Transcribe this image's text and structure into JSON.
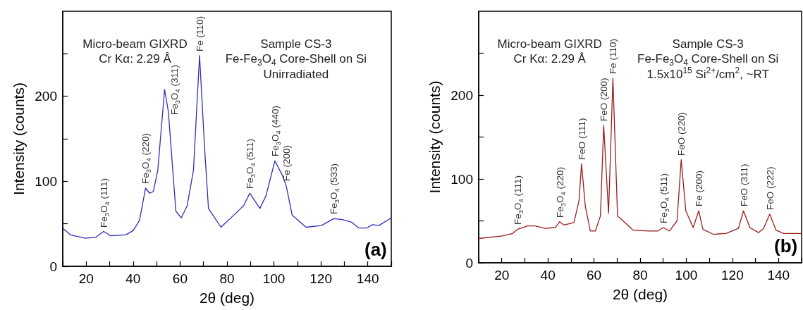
{
  "chart_data": [
    {
      "type": "line",
      "xlabel": "2θ (deg)",
      "ylabel": "Intensity (counts)",
      "x": [
        10,
        13.2,
        19.7,
        24,
        27.4,
        30.4,
        36.8,
        40,
        42.7,
        45.3,
        47,
        48.6,
        50.5,
        53.4,
        55,
        58.2,
        60.5,
        63,
        65.7,
        68.3,
        70.5,
        72.1,
        77.4,
        82.8,
        87,
        89.7,
        94,
        96.6,
        100.4,
        103.6,
        105.2,
        107.8,
        113.7,
        120.2,
        125.5,
        129.2,
        133,
        136.2,
        139.4,
        142,
        144.7,
        150
      ],
      "series": [
        {
          "color": "#2e2eb8",
          "values": [
            45,
            37,
            33,
            34,
            41,
            36,
            37,
            42,
            54,
            92,
            86,
            88,
            113,
            208,
            182,
            65,
            57,
            71,
            113,
            248,
            137,
            68,
            46,
            60,
            71,
            86,
            68,
            83,
            124,
            107,
            95,
            60,
            46,
            48,
            56,
            55,
            52,
            45,
            45,
            49,
            48,
            57
          ]
        }
      ],
      "xlim": [
        10,
        150
      ],
      "xticks": [
        {
          "value": 10,
          "label": null
        },
        20,
        {
          "value": 30,
          "label": null
        },
        40,
        {
          "value": 50,
          "label": null
        },
        60,
        {
          "value": 70,
          "label": null
        },
        80,
        {
          "value": 90,
          "label": null
        },
        100,
        {
          "value": 110,
          "label": null
        },
        120,
        {
          "value": 130,
          "label": null
        },
        140,
        {
          "value": 150,
          "label": null
        }
      ],
      "ylim": [
        0,
        300
      ],
      "yticks": [
        0,
        {
          "value": 50,
          "label": null
        },
        100,
        {
          "value": 150,
          "label": null
        },
        200,
        {
          "value": 250,
          "label": null
        }
      ],
      "marker": "none",
      "line_style": "solid",
      "grid": false,
      "annotations": [
        "Micro-beam GIXRD\nCr Kα: 2.29 Å",
        "Sample CS-3\nFe-Fe$_{3}$O$_{4}$ Core-Shell on Si\nUnirradiated",
        "(a)",
        {
          "text": "Fe$_{3}$O$_{4}$ (111)",
          "x": 27.4,
          "y": 41
        },
        {
          "text": "Fe$_{3}$O$_{4}$ (220)",
          "x": 45.3,
          "y": 92
        },
        {
          "text": "Fe$_{3}$O$_{4}$ (311)",
          "x": 53.4,
          "y": 208
        },
        {
          "text": "Fe (110)",
          "x": 68.3,
          "y": 248
        },
        {
          "text": "Fe$_{3}$O$_{4}$ (511)",
          "x": 89.7,
          "y": 86
        },
        {
          "text": "Fe$_{3}$O$_{4}$ (440)",
          "x": 100.4,
          "y": 124
        },
        {
          "text": "Fe (200)",
          "x": 105.2,
          "y": 95
        },
        {
          "text": "Fe$_{3}$O$_{4}$ (533)",
          "x": 125.5,
          "y": 56
        }
      ]
    },
    {
      "type": "line",
      "xlabel": "2θ (deg)",
      "ylabel": "Intensity (counts)",
      "x": [
        10,
        20.3,
        24.7,
        26.9,
        31.2,
        34.5,
        38.8,
        43.2,
        45.1,
        47,
        51.3,
        53.5,
        54.6,
        56.2,
        58.4,
        60.6,
        62.8,
        64.2,
        66.3,
        68.2,
        70.2,
        72.6,
        76.9,
        83.5,
        87.8,
        90,
        92.7,
        96,
        97.8,
        99.8,
        103,
        105.4,
        107.2,
        111.7,
        117.2,
        122.6,
        124.8,
        127.6,
        131.3,
        133.5,
        136.2,
        138.9,
        142.2,
        147.1,
        150
      ],
      "series": [
        {
          "color": "#9b1c1c",
          "values": [
            29,
            32,
            35,
            40,
            44,
            44,
            41,
            42,
            49,
            45,
            48,
            74,
            118,
            68,
            38,
            38,
            56,
            164,
            59,
            220,
            56,
            50,
            39,
            38,
            38,
            42,
            38,
            50,
            123,
            62,
            42,
            62,
            40,
            34,
            35,
            41,
            62,
            42,
            36,
            41,
            58,
            39,
            35,
            35,
            35
          ]
        }
      ],
      "xlim": [
        10,
        150
      ],
      "xticks": [
        {
          "value": 10,
          "label": null
        },
        20,
        {
          "value": 30,
          "label": null
        },
        40,
        {
          "value": 50,
          "label": null
        },
        60,
        {
          "value": 70,
          "label": null
        },
        80,
        {
          "value": 90,
          "label": null
        },
        100,
        {
          "value": 110,
          "label": null
        },
        120,
        {
          "value": 130,
          "label": null
        },
        140,
        {
          "value": 150,
          "label": null
        }
      ],
      "ylim": [
        0,
        300
      ],
      "yticks": [
        0,
        {
          "value": 50,
          "label": null
        },
        100,
        {
          "value": 150,
          "label": null
        },
        200,
        {
          "value": 250,
          "label": null
        }
      ],
      "marker": "none",
      "line_style": "solid",
      "grid": false,
      "annotations": [
        "Micro-beam GIXRD\nCr Kα: 2.29 Å",
        "Sample CS-3\nFe-Fe$_{3}$O$_{4}$ Core-Shell on Si\n1.5x10$^{15}$ Si$^{2+}$/cm$^{2}$, ~RT",
        "(b)",
        {
          "text": "Fe$_{3}$O$_{4}$ (111)",
          "x": 26.9,
          "y": 40
        },
        {
          "text": "Fe$_{3}$O$_{4}$ (220)",
          "x": 45.1,
          "y": 49
        },
        {
          "text": "FeO (111)",
          "x": 54.6,
          "y": 118
        },
        {
          "text": "FeO (200)",
          "x": 64.2,
          "y": 164
        },
        {
          "text": "Fe (110)",
          "x": 68.2,
          "y": 220
        },
        {
          "text": "Fe$_{3}$O$_{4}$ (511)",
          "x": 90,
          "y": 42
        },
        {
          "text": "FeO (220)",
          "x": 97.8,
          "y": 123
        },
        {
          "text": "Fe (200)",
          "x": 105.4,
          "y": 62
        },
        {
          "text": "FeO (311)",
          "x": 124.8,
          "y": 62
        },
        {
          "text": "FeO (222)",
          "x": 136.2,
          "y": 58
        }
      ]
    }
  ]
}
